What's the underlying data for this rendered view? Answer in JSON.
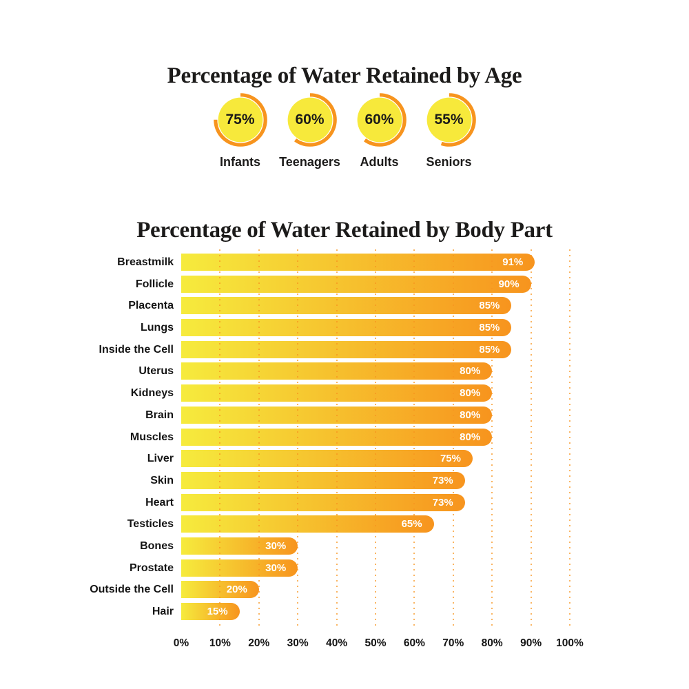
{
  "page": {
    "background": "#FFFFFF"
  },
  "colors": {
    "donut_fill": "#F7E93B",
    "donut_arc": "#F7941E",
    "bar_gradient_start": "#F6EB3D",
    "bar_gradient_end": "#F7941E",
    "grid_line": "#F7941E",
    "bar_value_text": "#FFFFFF",
    "label_text": "#1B1A19"
  },
  "chart_data": [
    {
      "type": "pie",
      "variant": "donut-progress",
      "title": "Percentage of Water Retained by Age",
      "categories": [
        "Infants",
        "Teenagers",
        "Adults",
        "Seniors"
      ],
      "values": [
        75,
        60,
        60,
        55
      ],
      "value_labels": [
        "75%",
        "60%",
        "60%",
        "55%"
      ],
      "arc_start": "top",
      "arc_direction": "clockwise",
      "legend_position": "below-each"
    },
    {
      "type": "bar",
      "orientation": "horizontal",
      "title": "Percentage of Water Retained by Body Part",
      "categories": [
        "Breastmilk",
        "Follicle",
        "Placenta",
        "Lungs",
        "Inside the Cell",
        "Uterus",
        "Kidneys",
        "Brain",
        "Muscles",
        "Liver",
        "Skin",
        "Heart",
        "Testicles",
        "Bones",
        "Prostate",
        "Outside the Cell",
        "Hair"
      ],
      "values": [
        91,
        90,
        85,
        85,
        85,
        80,
        80,
        80,
        80,
        75,
        73,
        73,
        65,
        30,
        30,
        20,
        15
      ],
      "value_labels": [
        "91%",
        "90%",
        "85%",
        "85%",
        "85%",
        "80%",
        "80%",
        "80%",
        "80%",
        "75%",
        "73%",
        "73%",
        "65%",
        "30%",
        "30%",
        "20%",
        "15%"
      ],
      "xlim": [
        0,
        100
      ],
      "x_ticks": [
        "0%",
        "10%",
        "20%",
        "30%",
        "40%",
        "50%",
        "60%",
        "70%",
        "80%",
        "90%",
        "100%"
      ],
      "grid": "vertical-dotted-every-10",
      "value_label_position": "inside-right",
      "bar_shape": "flat-left-rounded-right"
    }
  ]
}
